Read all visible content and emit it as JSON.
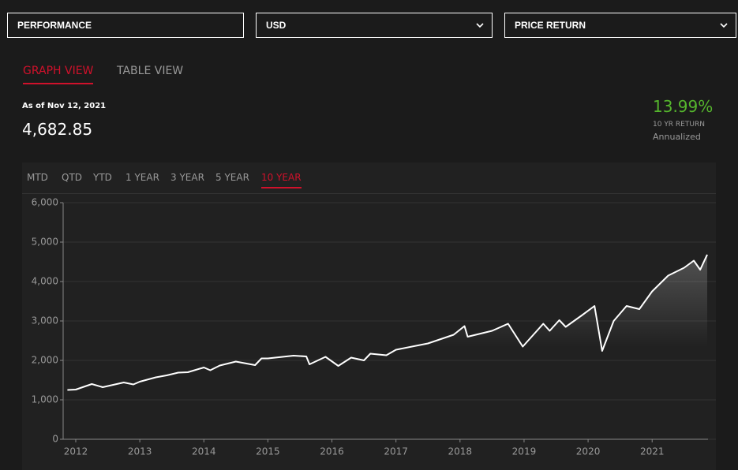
{
  "controls": [
    "PERFORMANCE",
    "USD",
    "PRICE RETURN"
  ],
  "tabs": [
    "GRAPH VIEW",
    "TABLE VIEW"
  ],
  "as_of": "As of Nov 12, 2021",
  "level": "4,682.85",
  "return": {
    "value": "13.99%",
    "label": "10 YR RETURN",
    "note": "Annualized"
  },
  "ranges": [
    "MTD",
    "QTD",
    "YTD",
    "1 YEAR",
    "3 YEAR",
    "5 YEAR",
    "10 YEAR"
  ],
  "chart_data": {
    "type": "line",
    "color": "#ffffff",
    "grid": true,
    "x": [
      2011.87,
      2012.0,
      2012.25,
      2012.42,
      2012.75,
      2012.9,
      2013.0,
      2013.25,
      2013.42,
      2013.6,
      2013.75,
      2014.0,
      2014.1,
      2014.25,
      2014.5,
      2014.8,
      2014.9,
      2015.0,
      2015.4,
      2015.6,
      2015.65,
      2015.9,
      2016.1,
      2016.3,
      2016.5,
      2016.6,
      2016.85,
      2017.0,
      2017.5,
      2017.9,
      2018.07,
      2018.12,
      2018.5,
      2018.75,
      2018.98,
      2019.3,
      2019.4,
      2019.55,
      2019.65,
      2019.9,
      2020.1,
      2020.22,
      2020.4,
      2020.6,
      2020.8,
      2021.0,
      2021.25,
      2021.5,
      2021.65,
      2021.75,
      2021.86
    ],
    "values": [
      1250,
      1260,
      1400,
      1320,
      1440,
      1390,
      1460,
      1570,
      1620,
      1690,
      1700,
      1820,
      1750,
      1870,
      1970,
      1880,
      2050,
      2050,
      2120,
      2100,
      1900,
      2090,
      1860,
      2070,
      2000,
      2170,
      2130,
      2270,
      2430,
      2650,
      2870,
      2600,
      2750,
      2930,
      2350,
      2930,
      2750,
      3020,
      2850,
      3140,
      3380,
      2240,
      3000,
      3380,
      3300,
      3750,
      4150,
      4350,
      4530,
      4300,
      4683
    ],
    "xlim": [
      2011.84,
      2021.86
    ],
    "xticks": [
      2012,
      2013,
      2014,
      2015,
      2016,
      2017,
      2018,
      2019,
      2020,
      2021
    ],
    "ylim": [
      0,
      6000
    ],
    "yticks": [
      0,
      {
        "value": 1000,
        "label": "1,000"
      },
      {
        "value": 2000,
        "label": "2,000"
      },
      {
        "value": 3000,
        "label": "3,000"
      },
      {
        "value": 4000,
        "label": "4,000"
      },
      {
        "value": 5000,
        "label": "5,000"
      },
      {
        "value": 6000,
        "label": "6,000"
      }
    ]
  }
}
